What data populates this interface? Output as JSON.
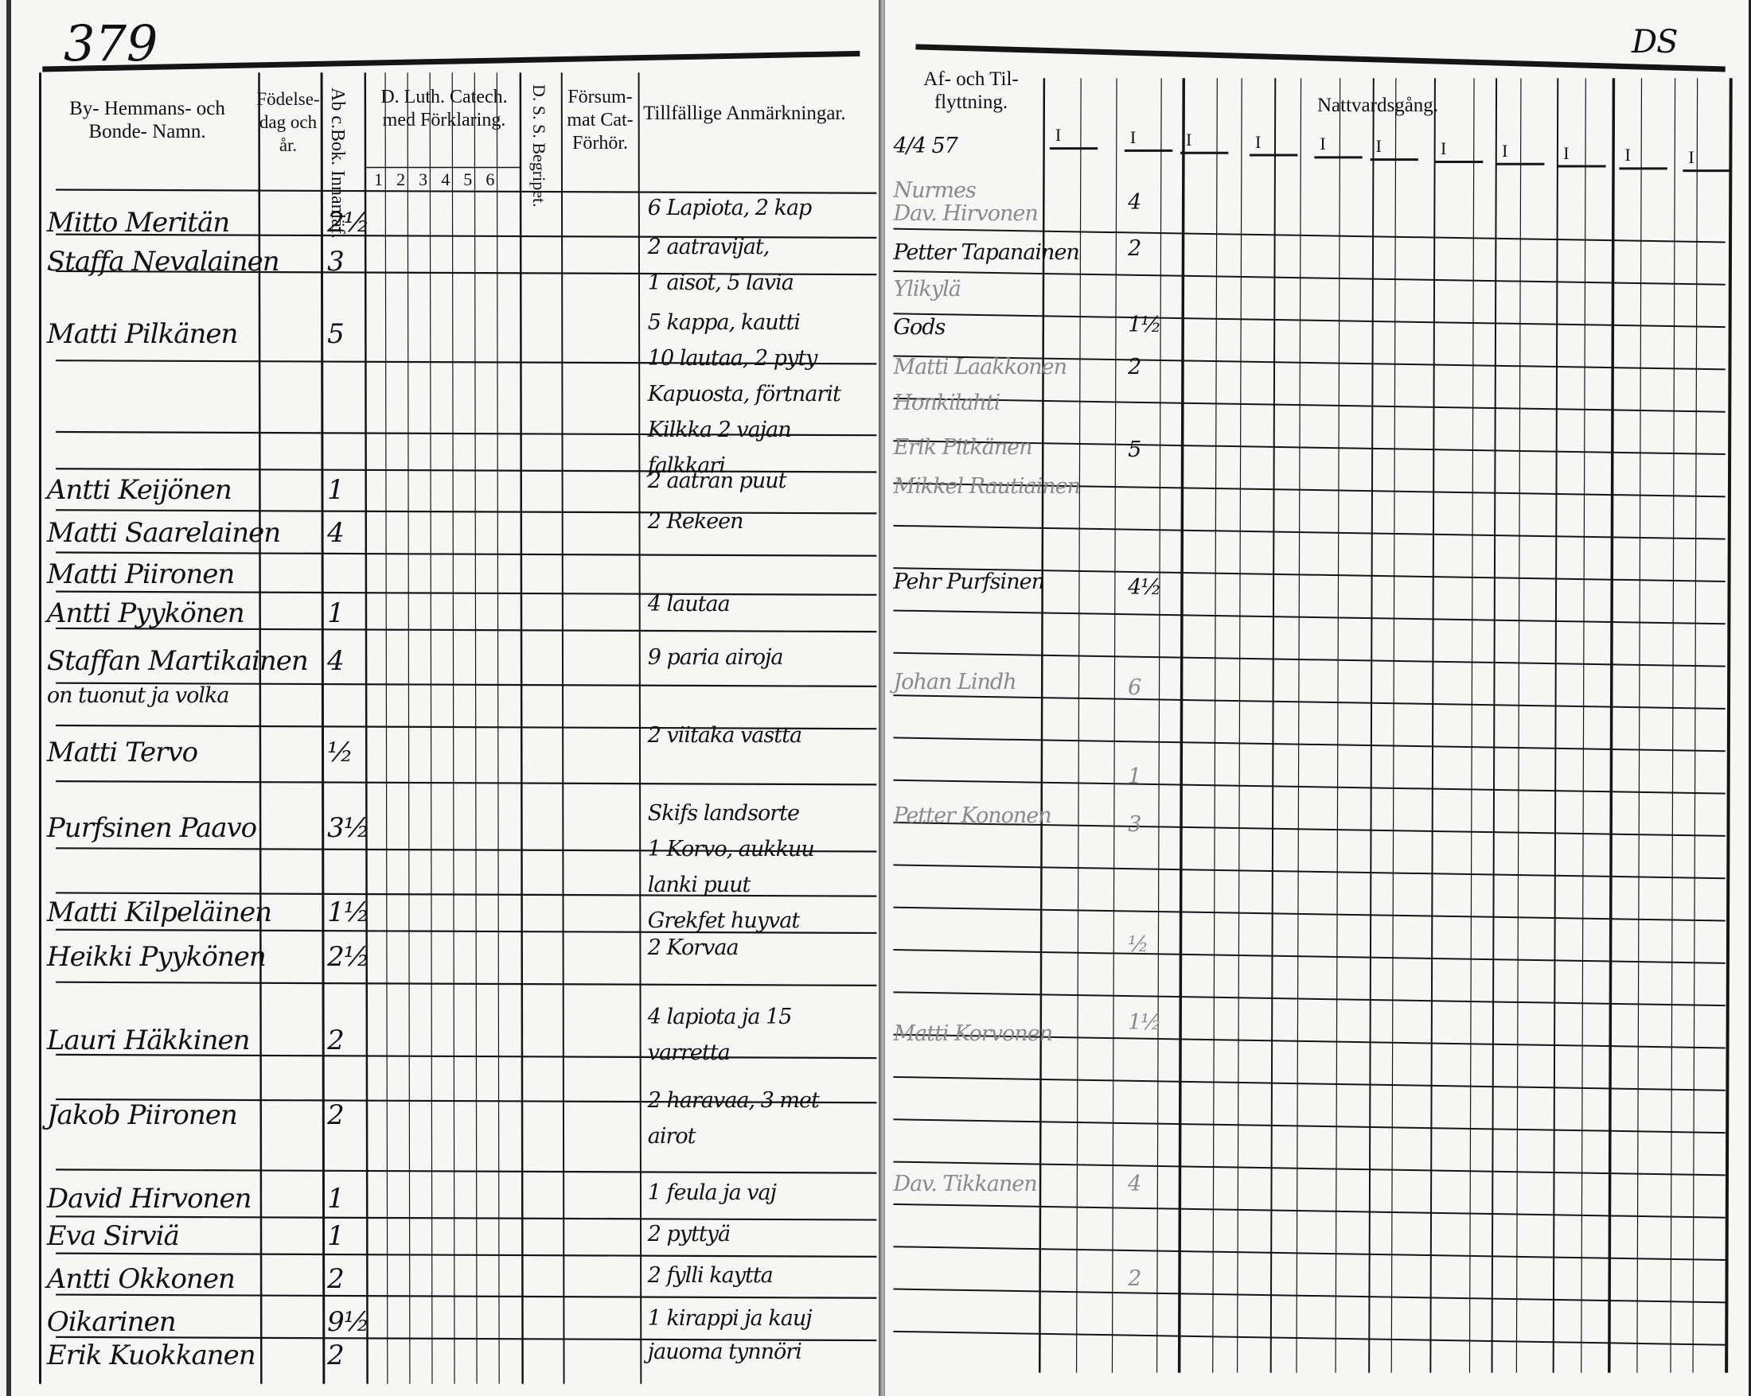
{
  "left_page": {
    "page_number": "379",
    "headers": {
      "name": "By- Hemmans- och Bonde- Namn.",
      "birth": "Födelse-dag och år.",
      "abc": "Ab c.Bok. Innanläf.",
      "catechism": "D. Luth. Catech. med Förklaring.",
      "catechism_cols": [
        "1",
        "2",
        "3",
        "4",
        "5",
        "6"
      ],
      "dss": "D. S. S. Begripet.",
      "forsummat": "Försum-mat Cat-Förhör.",
      "remarks": "Tillfällige Anmärkningar."
    },
    "rows": [
      {
        "name": "Mitto Meritän",
        "abc": "2½",
        "remarks": [
          "6 Lapiota, 2 kap"
        ]
      },
      {
        "name": "Staffa Nevalainen",
        "abc": "3",
        "remarks": [
          "2 aatravijat,",
          "1 aisot, 5 lavia"
        ]
      },
      {
        "name": "Matti Pilkänen",
        "abc": "5",
        "remarks": [
          "5 kappa, kautti",
          "10 lautaa, 2 pyty",
          "Kapuosta, förtnarit",
          "Kilkka 2 vajan",
          "falkkari"
        ]
      },
      {
        "name": "Antti Keijönen",
        "abc": "1",
        "remarks": [
          "2 aatran puut"
        ]
      },
      {
        "name": "Matti Saarelainen",
        "abc": "4",
        "remarks": [
          "2 Rekeen"
        ]
      },
      {
        "name": "Matti Piironen",
        "abc": "",
        "remarks": []
      },
      {
        "name": "Antti Pyykönen",
        "abc": "1",
        "remarks": [
          "4 lautaa"
        ]
      },
      {
        "name": "Staffan Martikainen",
        "abc": "4",
        "remarks": [
          "9 paria airoja"
        ]
      },
      {
        "name": "on tuonut ja volka",
        "abc": "",
        "remarks": []
      },
      {
        "name": "Matti Tervo",
        "abc": "½",
        "remarks": [
          "2 viitaka vastta"
        ]
      },
      {
        "name": "Purfsinen Paavo",
        "abc": "3½",
        "remarks": [
          "Skifs landsorte",
          "1 Korvo, aukkuu",
          "lanki puut",
          "Grekfet huyvat"
        ]
      },
      {
        "name": "Matti Kilpeläinen",
        "abc": "1½",
        "remarks": []
      },
      {
        "name": "Heikki Pyykönen",
        "abc": "2½",
        "remarks": [
          "2 Korvaa"
        ]
      },
      {
        "name": "Lauri Häkkinen",
        "abc": "2",
        "remarks": [
          "4 lapiota ja 15",
          "varretta"
        ]
      },
      {
        "name": "Jakob Piironen",
        "abc": "2",
        "remarks": [
          "2 haravaa, 3 met",
          "airot"
        ]
      },
      {
        "name": "David Hirvonen",
        "abc": "1",
        "remarks": [
          "1 feula ja vaj"
        ]
      },
      {
        "name": "Eva Sirviä",
        "abc": "1",
        "remarks": [
          "2 pyttyä"
        ]
      },
      {
        "name": "Antti Okkonen",
        "abc": "2",
        "remarks": [
          "2 fylli kaytta"
        ]
      },
      {
        "name": "Oikarinen",
        "abc": "9½",
        "remarks": [
          "1 kirappi ja kauj"
        ]
      },
      {
        "name": "Erik Kuokkanen",
        "abc": "2",
        "remarks": [
          "jauoma tynnöri"
        ]
      }
    ]
  },
  "right_page": {
    "corner_mark": "DS",
    "headers": {
      "moving": "Af- och Til-flyttning.",
      "communion": "Nattvardsgång.",
      "communion_marks": [
        "I",
        "I",
        "I",
        "I",
        "I",
        "I",
        "I",
        "I",
        "I",
        "I",
        "I"
      ]
    },
    "moving_entries": [
      {
        "text": "4/4 57",
        "faint": false
      },
      {
        "text": "Nurmes",
        "faint": true
      },
      {
        "text": "Dav. Hirvonen",
        "faint": true
      },
      {
        "text": "Petter Tapanainen",
        "faint": false
      },
      {
        "text": "Ylikylä",
        "faint": true
      },
      {
        "text": "Gods",
        "faint": false
      },
      {
        "text": "Matti Laakkonen",
        "faint": true
      },
      {
        "text": "Honkilahti",
        "faint": true
      },
      {
        "text": "Erik Pitkänen",
        "faint": true
      },
      {
        "text": "Mikkel Rautiainen",
        "faint": true
      },
      {
        "text": "Pehr Purfsinen",
        "faint": false
      },
      {
        "text": "Johan Lindh",
        "faint": true
      },
      {
        "text": "Petter Kononen",
        "faint": true
      },
      {
        "text": "Matti Korvonen",
        "faint": true
      },
      {
        "text": "Dav. Tikkanen",
        "faint": true
      }
    ],
    "communion_numbers": [
      "4",
      "2",
      "1½",
      "2",
      "5",
      "4½",
      "6",
      "1",
      "3",
      "½",
      "1½",
      "4",
      "2"
    ]
  }
}
